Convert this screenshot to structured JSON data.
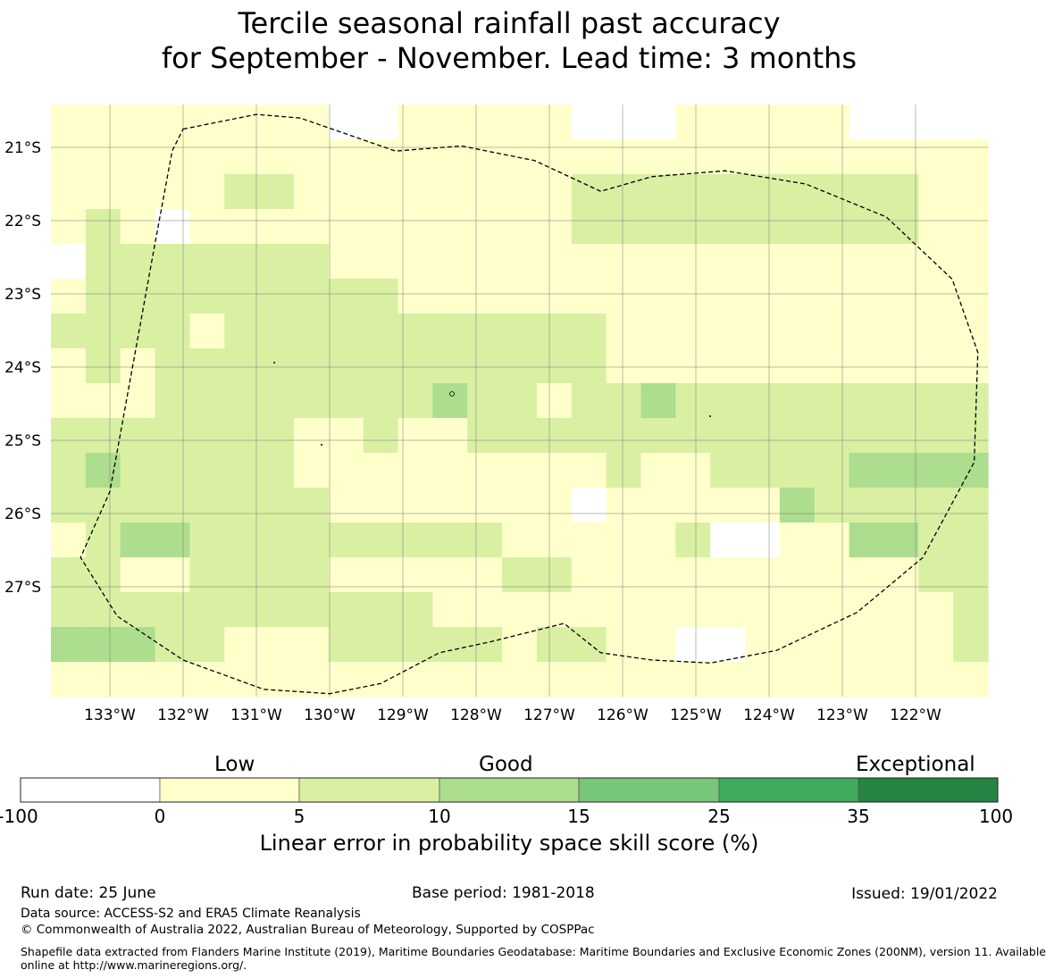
{
  "title": {
    "line1": "Tercile seasonal rainfall past accuracy",
    "line2": "for September - November. Lead time: 3 months"
  },
  "map": {
    "lon_labels": [
      "133°W",
      "132°W",
      "131°W",
      "130°W",
      "129°W",
      "128°W",
      "127°W",
      "126°W",
      "125°W",
      "124°W",
      "123°W",
      "122°W"
    ],
    "lat_labels": [
      "21°S",
      "22°S",
      "23°S",
      "24°S",
      "25°S",
      "26°S",
      "27°S"
    ],
    "lon_range": [
      -133.8,
      -121.0
    ],
    "lat_range": [
      -28.5,
      -20.4
    ],
    "cell_size_deg": 0.5556,
    "category_colors": [
      "#ffffff",
      "#ffffcc",
      "#d9f0a3",
      "#addd8e",
      "#78c679",
      "#41ab5d",
      "#238443"
    ],
    "grid": [
      [
        1,
        1,
        1,
        1,
        1,
        1,
        1,
        1,
        0,
        0,
        1,
        1,
        1,
        1,
        1,
        0,
        0,
        0,
        1,
        1,
        1,
        1,
        1,
        0,
        0,
        0,
        0
      ],
      [
        1,
        1,
        1,
        1,
        1,
        1,
        1,
        1,
        1,
        1,
        1,
        1,
        1,
        1,
        1,
        1,
        1,
        1,
        1,
        1,
        1,
        1,
        1,
        1,
        1,
        1,
        1
      ],
      [
        1,
        1,
        1,
        1,
        1,
        2,
        2,
        1,
        1,
        1,
        1,
        1,
        1,
        1,
        1,
        2,
        2,
        2,
        2,
        2,
        2,
        2,
        2,
        2,
        2,
        1,
        1
      ],
      [
        1,
        2,
        1,
        0,
        1,
        1,
        1,
        1,
        1,
        1,
        1,
        1,
        1,
        1,
        1,
        2,
        2,
        2,
        2,
        2,
        2,
        2,
        2,
        2,
        2,
        1,
        1
      ],
      [
        0,
        2,
        2,
        2,
        2,
        2,
        2,
        2,
        1,
        1,
        1,
        1,
        1,
        1,
        1,
        1,
        1,
        1,
        1,
        1,
        1,
        1,
        1,
        1,
        1,
        1,
        1
      ],
      [
        1,
        2,
        2,
        2,
        2,
        2,
        2,
        2,
        2,
        2,
        1,
        1,
        1,
        1,
        1,
        1,
        1,
        1,
        1,
        1,
        1,
        1,
        1,
        1,
        1,
        1,
        1
      ],
      [
        2,
        2,
        2,
        2,
        1,
        2,
        2,
        2,
        2,
        2,
        2,
        2,
        2,
        2,
        2,
        2,
        1,
        1,
        1,
        1,
        1,
        1,
        1,
        1,
        1,
        1,
        1
      ],
      [
        1,
        2,
        1,
        2,
        2,
        2,
        2,
        2,
        2,
        2,
        2,
        2,
        2,
        2,
        2,
        2,
        1,
        1,
        1,
        1,
        1,
        1,
        1,
        1,
        1,
        1,
        1
      ],
      [
        1,
        1,
        1,
        2,
        2,
        2,
        2,
        2,
        2,
        2,
        2,
        3,
        2,
        2,
        1,
        2,
        2,
        3,
        2,
        2,
        2,
        2,
        2,
        2,
        2,
        2,
        2
      ],
      [
        2,
        2,
        2,
        2,
        2,
        2,
        2,
        1,
        1,
        2,
        1,
        1,
        2,
        2,
        2,
        2,
        2,
        2,
        2,
        2,
        2,
        2,
        2,
        2,
        2,
        2,
        2
      ],
      [
        2,
        3,
        2,
        2,
        2,
        2,
        2,
        1,
        1,
        1,
        1,
        1,
        1,
        1,
        1,
        1,
        2,
        1,
        1,
        2,
        2,
        2,
        2,
        3,
        3,
        3,
        3
      ],
      [
        2,
        2,
        2,
        2,
        2,
        2,
        2,
        2,
        1,
        1,
        1,
        1,
        1,
        1,
        1,
        0,
        1,
        1,
        1,
        1,
        1,
        3,
        2,
        2,
        2,
        2,
        2
      ],
      [
        1,
        2,
        3,
        3,
        2,
        2,
        2,
        2,
        2,
        2,
        2,
        2,
        2,
        1,
        1,
        1,
        1,
        1,
        2,
        0,
        0,
        1,
        1,
        3,
        3,
        2,
        2
      ],
      [
        2,
        2,
        1,
        1,
        2,
        2,
        2,
        2,
        1,
        1,
        1,
        1,
        1,
        2,
        2,
        1,
        1,
        1,
        1,
        1,
        1,
        1,
        1,
        1,
        1,
        2,
        2
      ],
      [
        2,
        2,
        2,
        2,
        2,
        2,
        2,
        2,
        2,
        2,
        2,
        1,
        1,
        1,
        1,
        1,
        1,
        1,
        1,
        1,
        1,
        1,
        1,
        1,
        1,
        1,
        2
      ],
      [
        3,
        3,
        3,
        2,
        2,
        1,
        1,
        1,
        2,
        2,
        2,
        2,
        2,
        1,
        2,
        2,
        1,
        1,
        0,
        0,
        1,
        1,
        1,
        1,
        1,
        1,
        2
      ],
      [
        1,
        1,
        1,
        1,
        1,
        1,
        1,
        1,
        1,
        1,
        1,
        1,
        1,
        1,
        1,
        1,
        1,
        1,
        1,
        1,
        1,
        1,
        1,
        1,
        1,
        1,
        1
      ]
    ],
    "eez_outline": [
      [
        -132.0,
        -20.75
      ],
      [
        -131.0,
        -20.55
      ],
      [
        -130.4,
        -20.6
      ],
      [
        -129.1,
        -21.05
      ],
      [
        -128.2,
        -20.98
      ],
      [
        -127.2,
        -21.18
      ],
      [
        -126.3,
        -21.6
      ],
      [
        -125.6,
        -21.4
      ],
      [
        -124.6,
        -21.32
      ],
      [
        -123.5,
        -21.5
      ],
      [
        -122.4,
        -21.95
      ],
      [
        -121.5,
        -22.8
      ],
      [
        -121.15,
        -23.8
      ],
      [
        -121.2,
        -25.3
      ],
      [
        -121.9,
        -26.6
      ],
      [
        -122.8,
        -27.35
      ],
      [
        -123.9,
        -27.87
      ],
      [
        -124.8,
        -28.04
      ],
      [
        -125.6,
        -28.0
      ],
      [
        -126.3,
        -27.9
      ],
      [
        -126.8,
        -27.5
      ],
      [
        -127.8,
        -27.75
      ],
      [
        -128.5,
        -27.9
      ],
      [
        -129.3,
        -28.32
      ],
      [
        -130.0,
        -28.46
      ],
      [
        -130.9,
        -28.4
      ],
      [
        -132.0,
        -28.0
      ],
      [
        -132.9,
        -27.4
      ],
      [
        -133.4,
        -26.6
      ],
      [
        -133.0,
        -25.7
      ],
      [
        -132.8,
        -24.6
      ],
      [
        -132.4,
        -22.4
      ],
      [
        -132.15,
        -21.05
      ],
      [
        -132.0,
        -20.75
      ]
    ]
  },
  "colorbar": {
    "top_labels": [
      "Low",
      "Good",
      "Exceptional"
    ],
    "ticks": [
      "-100",
      "0",
      "5",
      "10",
      "15",
      "25",
      "35",
      "100"
    ],
    "colors": [
      "#ffffff",
      "#ffffcc",
      "#d9f0a3",
      "#addd8e",
      "#78c679",
      "#41ab5d",
      "#238443"
    ],
    "label": "Linear error in probability space skill score (%)"
  },
  "footer": {
    "run_date": "Run date: 25 June",
    "base_period": "Base period: 1981-2018",
    "issued": "Issued: 19/01/2022",
    "data_source": "Data source: ACCESS-S2 and ERA5 Climate Reanalysis",
    "copyright": "© Commonwealth of Australia 2022, Australian Bureau of Meteorology, Supported by COSPPac",
    "shapefile_line1": "Shapefile data extracted from Flanders Marine Institute (2019), Maritime Boundaries Geodatabase: Maritime Boundaries and Exclusive Economic Zones (200NM), version 11. Available",
    "shapefile_line2": "online at http://www.marineregions.org/."
  }
}
